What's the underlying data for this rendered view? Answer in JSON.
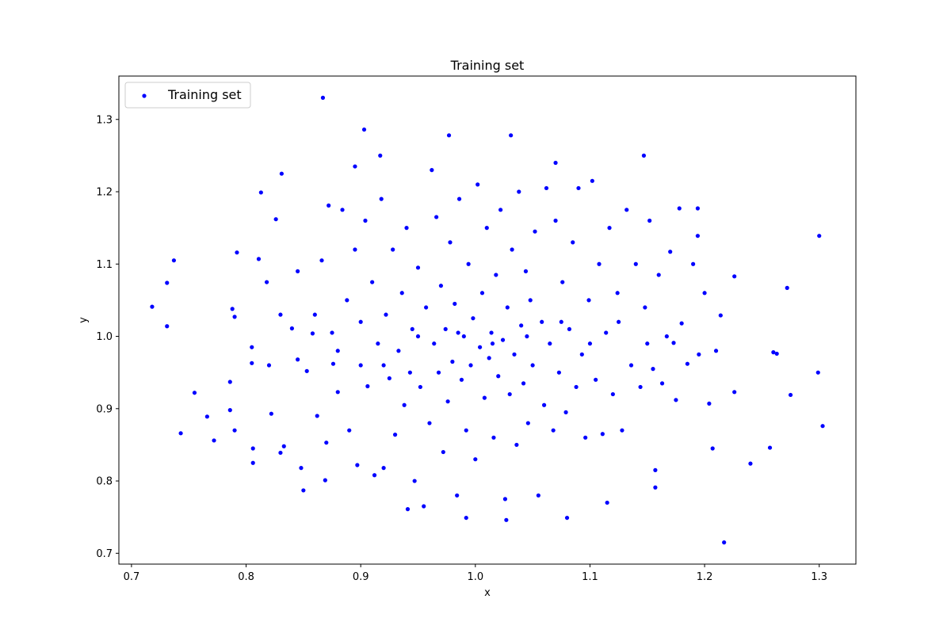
{
  "chart_data": {
    "type": "scatter",
    "title": "Training set",
    "xlabel": "x",
    "ylabel": "y",
    "xlim": [
      0.689,
      1.332
    ],
    "ylim": [
      0.685,
      1.36
    ],
    "xticks": [
      "0.7",
      "0.8",
      "0.9",
      "1.0",
      "1.1",
      "1.2",
      "1.3"
    ],
    "yticks": [
      "0.7",
      "0.8",
      "0.9",
      "1.0",
      "1.1",
      "1.2",
      "1.3"
    ],
    "grid": false,
    "legend": {
      "position": "top-left",
      "entries": [
        "Training set"
      ]
    },
    "series": [
      {
        "name": "Training set",
        "color": "#0000ff",
        "points": [
          [
            0.718,
            1.041
          ],
          [
            0.737,
            1.105
          ],
          [
            0.731,
            1.074
          ],
          [
            0.731,
            1.014
          ],
          [
            0.743,
            0.866
          ],
          [
            0.755,
            0.922
          ],
          [
            0.766,
            0.889
          ],
          [
            0.772,
            0.856
          ],
          [
            0.867,
            1.33
          ],
          [
            0.903,
            1.286
          ],
          [
            0.977,
            1.278
          ],
          [
            1.031,
            1.278
          ],
          [
            0.917,
            1.25
          ],
          [
            1.147,
            1.25
          ],
          [
            1.07,
            1.24
          ],
          [
            0.831,
            1.225
          ],
          [
            0.813,
            1.199
          ],
          [
            1.3,
            1.139
          ],
          [
            1.275,
            0.919
          ],
          [
            1.272,
            1.067
          ],
          [
            1.226,
            1.083
          ],
          [
            1.214,
            1.029
          ],
          [
            1.299,
            0.95
          ],
          [
            1.303,
            0.876
          ],
          [
            1.26,
            0.978
          ],
          [
            1.263,
            0.976
          ],
          [
            1.257,
            0.846
          ],
          [
            1.24,
            0.824
          ],
          [
            1.226,
            0.923
          ],
          [
            1.207,
            0.845
          ],
          [
            1.217,
            0.715
          ],
          [
            1.08,
            0.749
          ],
          [
            1.115,
            0.77
          ],
          [
            1.157,
            0.815
          ],
          [
            1.157,
            0.791
          ],
          [
            0.992,
            0.749
          ],
          [
            1.027,
            0.746
          ],
          [
            0.941,
            0.761
          ],
          [
            0.85,
            0.787
          ],
          [
            0.869,
            0.801
          ],
          [
            1.194,
            1.177
          ],
          [
            1.178,
            1.177
          ],
          [
            1.194,
            1.139
          ],
          [
            1.173,
            0.991
          ],
          [
            0.786,
            0.937
          ],
          [
            0.786,
            0.898
          ],
          [
            0.79,
            0.87
          ],
          [
            0.788,
            1.038
          ],
          [
            0.79,
            1.027
          ],
          [
            0.792,
            1.116
          ],
          [
            0.806,
            0.845
          ],
          [
            0.806,
            0.825
          ],
          [
            0.805,
            0.963
          ],
          [
            0.805,
            0.985
          ],
          [
            0.811,
            1.107
          ],
          [
            0.818,
            1.075
          ],
          [
            0.822,
            0.893
          ],
          [
            0.826,
            1.162
          ],
          [
            0.83,
            0.839
          ],
          [
            0.833,
            0.848
          ],
          [
            0.84,
            1.011
          ],
          [
            0.845,
            0.968
          ],
          [
            0.848,
            0.818
          ],
          [
            0.853,
            0.952
          ],
          [
            0.858,
            1.004
          ],
          [
            0.862,
            0.89
          ],
          [
            0.866,
            1.105
          ],
          [
            0.87,
            0.853
          ],
          [
            0.872,
            1.181
          ],
          [
            0.876,
            0.962
          ],
          [
            0.88,
            0.923
          ],
          [
            0.884,
            1.175
          ],
          [
            0.888,
            1.05
          ],
          [
            0.89,
            0.87
          ],
          [
            0.895,
            1.235
          ],
          [
            0.897,
            0.822
          ],
          [
            0.9,
            0.96
          ],
          [
            0.904,
            1.16
          ],
          [
            0.906,
            0.931
          ],
          [
            0.91,
            1.075
          ],
          [
            0.912,
            0.808
          ],
          [
            0.915,
            0.99
          ],
          [
            0.918,
            1.19
          ],
          [
            0.92,
            0.818
          ],
          [
            0.922,
            1.03
          ],
          [
            0.925,
            0.942
          ],
          [
            0.928,
            1.12
          ],
          [
            0.93,
            0.864
          ],
          [
            0.933,
            0.98
          ],
          [
            0.936,
            1.06
          ],
          [
            0.938,
            0.905
          ],
          [
            0.94,
            1.15
          ],
          [
            0.943,
            0.95
          ],
          [
            0.945,
            1.01
          ],
          [
            0.947,
            0.8
          ],
          [
            0.95,
            1.095
          ],
          [
            0.952,
            0.93
          ],
          [
            0.955,
            0.765
          ],
          [
            0.957,
            1.04
          ],
          [
            0.96,
            0.88
          ],
          [
            0.962,
            1.23
          ],
          [
            0.964,
            0.99
          ],
          [
            0.966,
            1.165
          ],
          [
            0.968,
            0.95
          ],
          [
            0.97,
            1.07
          ],
          [
            0.972,
            0.84
          ],
          [
            0.974,
            1.01
          ],
          [
            0.976,
            0.91
          ],
          [
            0.978,
            1.13
          ],
          [
            0.98,
            0.965
          ],
          [
            0.982,
            1.045
          ],
          [
            0.984,
            0.78
          ],
          [
            0.986,
            1.19
          ],
          [
            0.988,
            0.94
          ],
          [
            0.99,
            1.0
          ],
          [
            0.992,
            0.87
          ],
          [
            0.994,
            1.1
          ],
          [
            0.996,
            0.96
          ],
          [
            0.998,
            1.025
          ],
          [
            1.0,
            0.83
          ],
          [
            1.002,
            1.21
          ],
          [
            1.004,
            0.985
          ],
          [
            1.006,
            1.06
          ],
          [
            1.008,
            0.915
          ],
          [
            1.01,
            1.15
          ],
          [
            1.012,
            0.97
          ],
          [
            1.014,
            1.005
          ],
          [
            1.016,
            0.86
          ],
          [
            1.018,
            1.085
          ],
          [
            1.02,
            0.945
          ],
          [
            1.022,
            1.175
          ],
          [
            1.024,
            0.995
          ],
          [
            1.026,
            0.775
          ],
          [
            1.028,
            1.04
          ],
          [
            1.03,
            0.92
          ],
          [
            1.032,
            1.12
          ],
          [
            1.034,
            0.975
          ],
          [
            1.036,
            0.85
          ],
          [
            1.038,
            1.2
          ],
          [
            1.04,
            1.015
          ],
          [
            1.042,
            0.935
          ],
          [
            1.044,
            1.09
          ],
          [
            1.046,
            0.88
          ],
          [
            1.048,
            1.05
          ],
          [
            1.05,
            0.96
          ],
          [
            1.052,
            1.145
          ],
          [
            1.055,
            0.78
          ],
          [
            1.058,
            1.02
          ],
          [
            1.06,
            0.905
          ],
          [
            1.062,
            1.205
          ],
          [
            1.065,
            0.99
          ],
          [
            1.068,
            0.87
          ],
          [
            1.07,
            1.16
          ],
          [
            1.073,
            0.95
          ],
          [
            1.076,
            1.075
          ],
          [
            1.079,
            0.895
          ],
          [
            1.082,
            1.01
          ],
          [
            1.085,
            1.13
          ],
          [
            1.088,
            0.93
          ],
          [
            1.09,
            1.205
          ],
          [
            1.093,
            0.975
          ],
          [
            1.096,
            0.86
          ],
          [
            1.099,
            1.05
          ],
          [
            1.102,
            1.215
          ],
          [
            1.105,
            0.94
          ],
          [
            1.108,
            1.1
          ],
          [
            1.111,
            0.865
          ],
          [
            1.114,
            1.005
          ],
          [
            1.117,
            1.15
          ],
          [
            1.12,
            0.92
          ],
          [
            1.124,
            1.06
          ],
          [
            1.128,
            0.87
          ],
          [
            1.132,
            1.175
          ],
          [
            1.136,
            0.96
          ],
          [
            1.14,
            1.1
          ],
          [
            1.144,
            0.93
          ],
          [
            1.148,
            1.04
          ],
          [
            1.152,
            1.16
          ],
          [
            1.155,
            0.955
          ],
          [
            1.16,
            1.085
          ],
          [
            1.163,
            0.935
          ],
          [
            1.167,
            1.0
          ],
          [
            1.17,
            1.117
          ],
          [
            1.175,
            0.912
          ],
          [
            1.18,
            1.018
          ],
          [
            1.185,
            0.962
          ],
          [
            1.19,
            1.1
          ],
          [
            1.195,
            0.975
          ],
          [
            1.2,
            1.06
          ],
          [
            1.204,
            0.907
          ],
          [
            1.21,
            0.98
          ],
          [
            0.875,
            1.005
          ],
          [
            0.895,
            1.12
          ],
          [
            0.88,
            0.98
          ],
          [
            0.9,
            1.02
          ],
          [
            0.92,
            0.96
          ],
          [
            0.95,
            1.0
          ],
          [
            0.985,
            1.005
          ],
          [
            1.015,
            0.99
          ],
          [
            1.045,
            1.0
          ],
          [
            1.075,
            1.02
          ],
          [
            1.1,
            0.99
          ],
          [
            1.125,
            1.02
          ],
          [
            0.86,
            1.03
          ],
          [
            0.83,
            1.03
          ],
          [
            0.82,
            0.96
          ],
          [
            0.845,
            1.09
          ],
          [
            1.15,
            0.99
          ]
        ]
      }
    ]
  }
}
